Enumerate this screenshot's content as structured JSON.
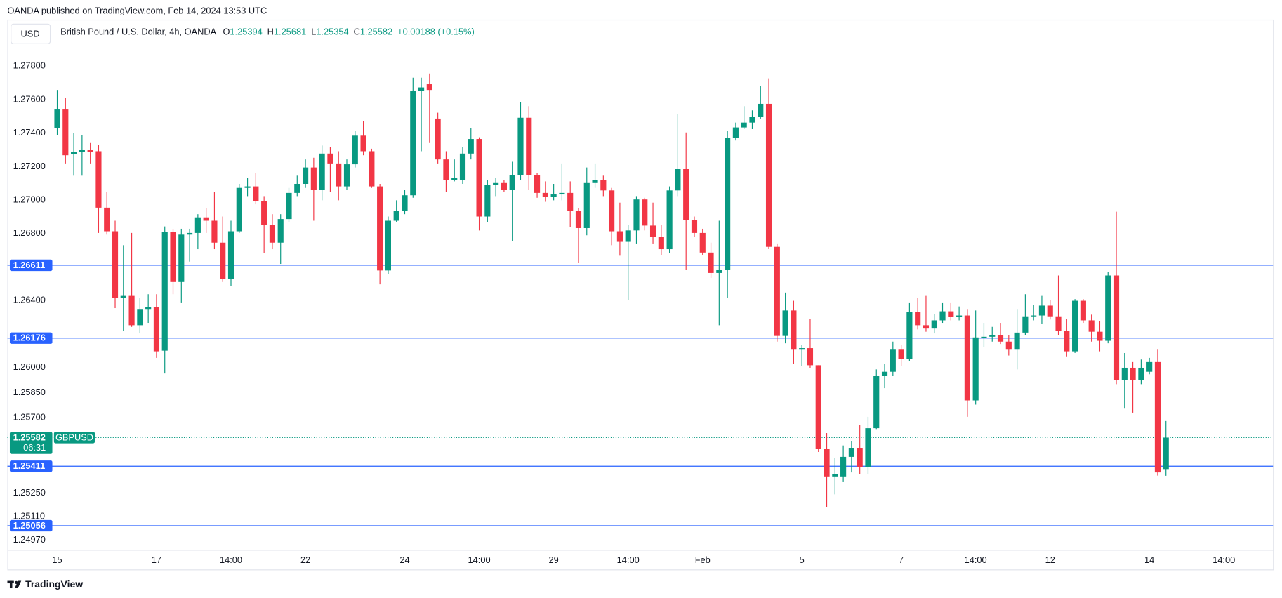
{
  "header": {
    "publisher": "OANDA published on TradingView.com, Feb 14, 2024 13:53 UTC"
  },
  "footer": {
    "brand": "TradingView"
  },
  "chart_data": {
    "type": "candlestick",
    "currency": "USD",
    "title": "British Pound / U.S. Dollar, 4h, OANDA",
    "ohlc_prefixes": [
      "O",
      "H",
      "L",
      "C"
    ],
    "change": "+0.00188 (+0.15%)",
    "symbol": "GBPUSD",
    "countdown": "06:31",
    "up_color": "#089981",
    "down_color": "#f23645",
    "level_color": "#2962ff",
    "categories": [
      "15",
      null,
      null,
      null,
      null,
      null,
      null,
      null,
      null,
      null,
      null,
      null,
      "17",
      null,
      null,
      null,
      null,
      null,
      null,
      null,
      null,
      "14:00",
      null,
      null,
      null,
      null,
      null,
      null,
      null,
      null,
      "22",
      null,
      null,
      null,
      null,
      null,
      null,
      null,
      null,
      null,
      null,
      null,
      "24",
      null,
      null,
      null,
      null,
      null,
      null,
      null,
      null,
      "14:00",
      null,
      null,
      null,
      null,
      null,
      null,
      null,
      null,
      "29",
      null,
      null,
      null,
      null,
      null,
      null,
      null,
      null,
      "14:00",
      null,
      null,
      null,
      null,
      null,
      null,
      null,
      null,
      "Feb",
      null,
      null,
      null,
      null,
      null,
      null,
      null,
      null,
      null,
      null,
      null,
      "5",
      null,
      null,
      null,
      null,
      null,
      null,
      null,
      null,
      null,
      null,
      null,
      "7",
      null,
      null,
      null,
      null,
      null,
      null,
      null,
      null,
      "14:00",
      null,
      null,
      null,
      null,
      null,
      null,
      null,
      null,
      "12",
      null,
      null,
      null,
      null,
      null,
      null,
      null,
      null,
      null,
      null,
      null,
      "14",
      null,
      null,
      null,
      null,
      null,
      null,
      null,
      null,
      "14:00"
    ],
    "open": [
      1.27429,
      1.27541,
      1.27273,
      1.27287,
      1.27302,
      1.27292,
      1.26955,
      1.26814,
      1.26414,
      1.26428,
      1.26253,
      1.2635,
      1.2636,
      1.26101,
      1.26809,
      1.26511,
      1.26794,
      1.26804,
      1.26897,
      1.26877,
      1.26746,
      1.26531,
      1.26814,
      1.27073,
      1.27082,
      1.26995,
      1.26853,
      1.26746,
      1.26887,
      1.27043,
      1.27097,
      1.27195,
      1.27063,
      1.27278,
      1.27219,
      1.27082,
      1.27214,
      1.27385,
      1.27292,
      1.27082,
      1.2658,
      1.26877,
      1.26936,
      1.27029,
      1.27653,
      1.27692,
      1.27487,
      1.27243,
      1.27121,
      1.27121,
      1.27278,
      1.27365,
      1.26902,
      1.27092,
      1.27102,
      1.27063,
      1.27151,
      1.27492,
      1.27151,
      1.27043,
      1.27019,
      1.27034,
      1.27043,
      1.26936,
      1.26833,
      1.27102,
      1.27121,
      1.27058,
      1.26814,
      1.26751,
      1.26819,
      1.27004,
      1.26848,
      1.2678,
      1.26707,
      1.27058,
      1.27185,
      1.26882,
      1.26804,
      1.26687,
      1.26565,
      1.26585,
      1.2737,
      1.27434,
      1.27463,
      1.27497,
      1.27575,
      1.26721,
      1.26189,
      1.26341,
      1.26111,
      1.26116,
      1.26014,
      1.25516,
      1.2535,
      1.2535,
      1.25467,
      1.25521,
      1.25404,
      1.25638,
      1.2595,
      1.25975,
      1.26111,
      1.26053,
      1.26331,
      1.26253,
      1.26233,
      1.26282,
      1.26336,
      1.26302,
      1.26311,
      1.25804,
      1.2618,
      1.26184,
      1.26194,
      1.26155,
      1.26111,
      1.26209,
      1.26306,
      1.26311,
      1.2637,
      1.26306,
      1.26219,
      1.26097,
      1.26399,
      1.26282,
      1.26214,
      1.2616,
      1.2655,
      1.25926,
      1.25999,
      1.25926,
      1.25975,
      1.26033,
      1.25394,
      null,
      null,
      null,
      null,
      null,
      null,
      null
    ],
    "high": [
      1.27658,
      1.27609,
      1.274,
      1.2739,
      1.27341,
      1.27331,
      1.27048,
      1.26877,
      1.26731,
      1.26804,
      1.26414,
      1.26438,
      1.26438,
      1.26843,
      1.26829,
      1.26829,
      1.26829,
      1.26916,
      1.26951,
      1.27048,
      1.26902,
      1.26877,
      1.27097,
      1.27131,
      1.2716,
      1.27024,
      1.26916,
      1.26916,
      1.27073,
      1.27146,
      1.27243,
      1.27253,
      1.27326,
      1.27317,
      1.27292,
      1.27243,
      1.27414,
      1.27473,
      1.27307,
      1.27097,
      1.26902,
      1.26999,
      1.27063,
      1.27731,
      1.27731,
      1.27756,
      1.27522,
      1.27292,
      1.27243,
      1.27317,
      1.27429,
      1.27375,
      1.27121,
      1.27131,
      1.27121,
      1.27229,
      1.27585,
      1.27561,
      1.2716,
      1.27112,
      1.27097,
      1.27219,
      1.27112,
      1.26951,
      1.27195,
      1.27219,
      1.27146,
      1.27073,
      1.26985,
      1.26853,
      1.27024,
      1.27014,
      1.26985,
      1.26853,
      1.27082,
      1.27512,
      1.27404,
      1.26902,
      1.26829,
      1.26746,
      1.26877,
      1.27414,
      1.27463,
      1.27561,
      1.27536,
      1.27683,
      1.27727,
      1.26741,
      1.26448,
      1.26399,
      1.26136,
      1.26292,
      1.26014,
      1.25609,
      1.25462,
      1.25535,
      1.2556,
      1.25657,
      1.25706,
      1.25989,
      1.26023,
      1.26155,
      1.26136,
      1.26389,
      1.26414,
      1.26428,
      1.26321,
      1.26389,
      1.26389,
      1.26365,
      1.2635,
      1.26341,
      1.26267,
      1.26243,
      1.26267,
      1.26194,
      1.2635,
      1.26438,
      1.26375,
      1.26428,
      1.26404,
      1.2655,
      1.26292,
      1.26409,
      1.26409,
      1.26316,
      1.26277,
      1.2657,
      1.26931,
      1.26087,
      1.26033,
      1.26048,
      1.26058,
      1.26111,
      1.25681,
      null,
      null,
      null,
      null,
      null,
      null,
      null
    ],
    "low": [
      1.2739,
      1.27219,
      1.27146,
      1.27146,
      1.27219,
      1.26804,
      1.26794,
      1.26355,
      1.26219,
      1.26243,
      1.26204,
      1.26267,
      1.26058,
      1.25965,
      1.26438,
      1.26389,
      1.26633,
      1.26707,
      1.26804,
      1.26707,
      1.26511,
      1.26487,
      1.26804,
      1.27024,
      1.26975,
      1.26682,
      1.26707,
      1.26619,
      1.26868,
      1.27024,
      1.27073,
      1.26877,
      1.26999,
      1.27048,
      1.26999,
      1.27063,
      1.27195,
      1.27268,
      1.27073,
      1.26497,
      1.2656,
      1.26868,
      1.26916,
      1.27014,
      1.27292,
      1.27341,
      1.27219,
      1.27048,
      1.27112,
      1.27097,
      1.27243,
      1.26819,
      1.26868,
      1.27024,
      1.27048,
      1.26755,
      1.27121,
      1.27063,
      1.27014,
      1.2699,
      1.26999,
      1.26999,
      1.26838,
      1.26624,
      1.2679,
      1.27073,
      1.27024,
      1.26731,
      1.26668,
      1.26404,
      1.26741,
      1.26819,
      1.26741,
      1.26672,
      1.26682,
      1.27024,
      1.26585,
      1.2678,
      1.26672,
      1.26536,
      1.26253,
      1.26414,
      1.27356,
      1.27424,
      1.27424,
      1.27487,
      1.26707,
      1.26155,
      1.26145,
      1.26023,
      1.26009,
      1.25999,
      1.25496,
      1.25169,
      1.25243,
      1.25316,
      1.25374,
      1.25365,
      1.25365,
      1.25633,
      1.25877,
      1.2595,
      1.26009,
      1.26038,
      1.26228,
      1.26214,
      1.26204,
      1.26267,
      1.26282,
      1.26282,
      1.25706,
      1.25779,
      1.26121,
      1.26155,
      1.26141,
      1.26072,
      1.25989,
      1.26194,
      1.26282,
      1.26263,
      1.26287,
      1.26194,
      1.26067,
      1.26087,
      1.26267,
      1.26155,
      1.26097,
      1.26145,
      1.25901,
      1.25755,
      1.25731,
      1.25901,
      1.2596,
      1.25355,
      1.25354,
      null,
      null,
      null,
      null,
      null,
      null,
      null
    ],
    "close": [
      1.27541,
      1.27268,
      1.27287,
      1.27302,
      1.27287,
      1.26955,
      1.26814,
      1.26414,
      1.26428,
      1.26253,
      1.2635,
      1.2636,
      1.26097,
      1.26809,
      1.26511,
      1.26794,
      1.26804,
      1.26897,
      1.26877,
      1.26746,
      1.26531,
      1.26814,
      1.27073,
      1.27082,
      1.26995,
      1.26853,
      1.26746,
      1.26887,
      1.27043,
      1.27097,
      1.27195,
      1.27063,
      1.27278,
      1.27219,
      1.27082,
      1.27214,
      1.27385,
      1.27292,
      1.27082,
      1.2658,
      1.26877,
      1.26936,
      1.27029,
      1.27653,
      1.27673,
      1.27658,
      1.27243,
      1.27121,
      1.27131,
      1.27278,
      1.27365,
      1.26902,
      1.27092,
      1.27102,
      1.27063,
      1.27151,
      1.27492,
      1.27151,
      1.27043,
      1.27019,
      1.27034,
      1.27043,
      1.26936,
      1.26833,
      1.27102,
      1.27121,
      1.27058,
      1.26814,
      1.26751,
      1.26819,
      1.27004,
      1.26848,
      1.2678,
      1.26707,
      1.27058,
      1.27185,
      1.26882,
      1.26804,
      1.26687,
      1.26565,
      1.26585,
      1.2737,
      1.27434,
      1.27463,
      1.27497,
      1.27575,
      1.26721,
      1.26189,
      1.26341,
      1.26111,
      1.26116,
      1.26014,
      1.25516,
      1.2535,
      1.25365,
      1.25467,
      1.25521,
      1.25404,
      1.25638,
      1.2595,
      1.25975,
      1.26111,
      1.26053,
      1.26331,
      1.26253,
      1.26233,
      1.26282,
      1.26336,
      1.26302,
      1.26311,
      1.25804,
      1.2618,
      1.26184,
      1.26194,
      1.26155,
      1.26111,
      1.26209,
      1.26306,
      1.26311,
      1.2637,
      1.26306,
      1.26219,
      1.26097,
      1.26399,
      1.26282,
      1.26214,
      1.2616,
      1.2655,
      1.25926,
      1.25999,
      1.25926,
      1.25999,
      1.26033,
      1.25374,
      1.25582,
      null,
      null,
      null,
      null,
      null,
      null,
      null
    ],
    "ylim": [
      1.24912,
      1.28078
    ],
    "yticks": [
      {
        "value": 1.278,
        "label": "1.27800"
      },
      {
        "value": 1.276,
        "label": "1.27600"
      },
      {
        "value": 1.274,
        "label": "1.27400"
      },
      {
        "value": 1.272,
        "label": "1.27200"
      },
      {
        "value": 1.27,
        "label": "1.27000"
      },
      {
        "value": 1.268,
        "label": "1.26800"
      },
      {
        "value": 1.264,
        "label": "1.26400"
      },
      {
        "value": 1.26,
        "label": "1.26000"
      },
      {
        "value": 1.2585,
        "label": "1.25850"
      },
      {
        "value": 1.257,
        "label": "1.25700"
      },
      {
        "value": 1.2525,
        "label": "1.25250"
      },
      {
        "value": 1.2511,
        "label": "1.25110"
      },
      {
        "value": 1.2497,
        "label": "1.24970"
      }
    ],
    "levels": [
      1.26611,
      1.26176,
      1.25411,
      1.25056
    ]
  }
}
